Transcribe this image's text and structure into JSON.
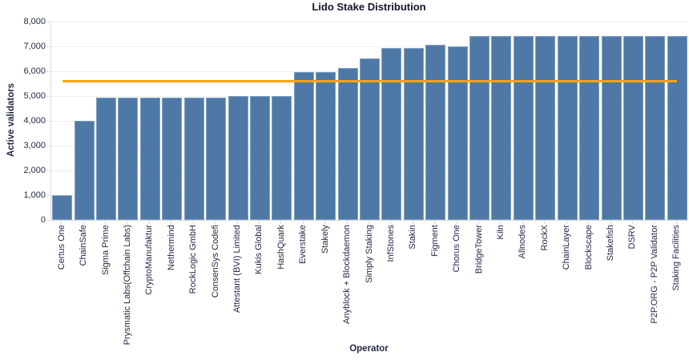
{
  "chart_data": {
    "type": "bar",
    "title": "Lido Stake Distribution",
    "xlabel": "Operator",
    "ylabel": "Active validators",
    "ylim": [
      0,
      8000
    ],
    "ytick_step": 1000,
    "grid": true,
    "legend": "none",
    "bar_color": "#4e79a7",
    "categories": [
      "Certus One",
      "ChainSafe",
      "Sigma Prime",
      "Prysmatic Labs(Offchain Labs)",
      "CryptoManufaktur",
      "Nethermind",
      "RockLogic GmbH",
      "ConsenSys Codefi",
      "Attestant (BVI) Limited",
      "Kukis Global",
      "HashQuark",
      "Everstake",
      "Stakely",
      "Anyblock + Blockdaemon",
      "Simply Staking",
      "InfStones",
      "Stakin",
      "Figment",
      "Chorus One",
      "BridgeTower",
      "Kiln",
      "Allnodes",
      "RockX",
      "ChainLayer",
      "Blockscape",
      "Stakefish",
      "DSRV",
      "P2P.ORG - P2P Validator",
      "Staking Facilities"
    ],
    "values": [
      1000,
      4000,
      4940,
      4940,
      4940,
      4940,
      4940,
      4940,
      5000,
      5000,
      5000,
      5980,
      5980,
      6130,
      6510,
      6945,
      6945,
      7060,
      7000,
      7430,
      7430,
      7430,
      7430,
      7430,
      7430,
      7430,
      7430,
      7430,
      7430
    ],
    "reference_line": {
      "value": 5610,
      "color": "#ffa502"
    }
  },
  "axis": {
    "yticks": [
      "0",
      "1,000",
      "2,000",
      "3,000",
      "4,000",
      "5,000",
      "6,000",
      "7,000",
      "8,000"
    ]
  },
  "colors": {
    "grid": "#ececec",
    "axis": "#d9d9d9",
    "text": "#252a47",
    "title": "#14142b"
  }
}
